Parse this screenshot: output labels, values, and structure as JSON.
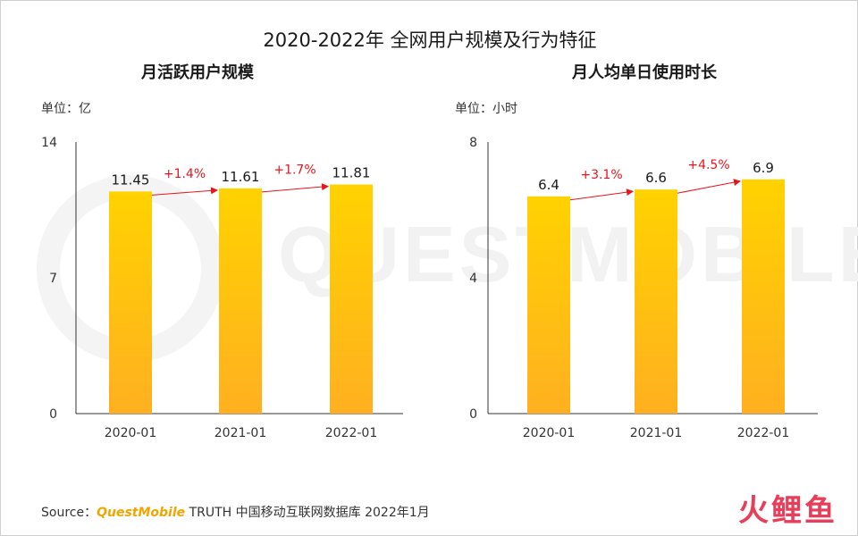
{
  "title": "2020-2022年 全网用户规模及行为特征",
  "source": {
    "prefix": "Source：",
    "brand": "QuestMobile",
    "rest": " TRUTH 中国移动互联网数据库 2022年1月"
  },
  "watermark": "QUESTMOBILE",
  "logo": "火鲤鱼",
  "colors": {
    "bar_top": "#ffd200",
    "bar_bottom": "#ffb020",
    "arrow": "#e8141b",
    "axis": "#333333"
  },
  "chart_data": [
    {
      "type": "bar",
      "title": "月活跃用户规模",
      "unit": "单位：亿",
      "categories": [
        "2020-01",
        "2021-01",
        "2022-01"
      ],
      "values": [
        11.45,
        11.61,
        11.81
      ],
      "value_labels": [
        "11.45",
        "11.61",
        "11.81"
      ],
      "growth": [
        "+1.4%",
        "+1.7%"
      ],
      "yticks": [
        "0",
        "7",
        "14"
      ],
      "ylim": [
        0,
        14
      ]
    },
    {
      "type": "bar",
      "title": "月人均单日使用时长",
      "unit": "单位：小时",
      "categories": [
        "2020-01",
        "2021-01",
        "2022-01"
      ],
      "values": [
        6.4,
        6.6,
        6.9
      ],
      "value_labels": [
        "6.4",
        "6.6",
        "6.9"
      ],
      "growth": [
        "+3.1%",
        "+4.5%"
      ],
      "yticks": [
        "0",
        "4",
        "8"
      ],
      "ylim": [
        0,
        8
      ]
    }
  ]
}
